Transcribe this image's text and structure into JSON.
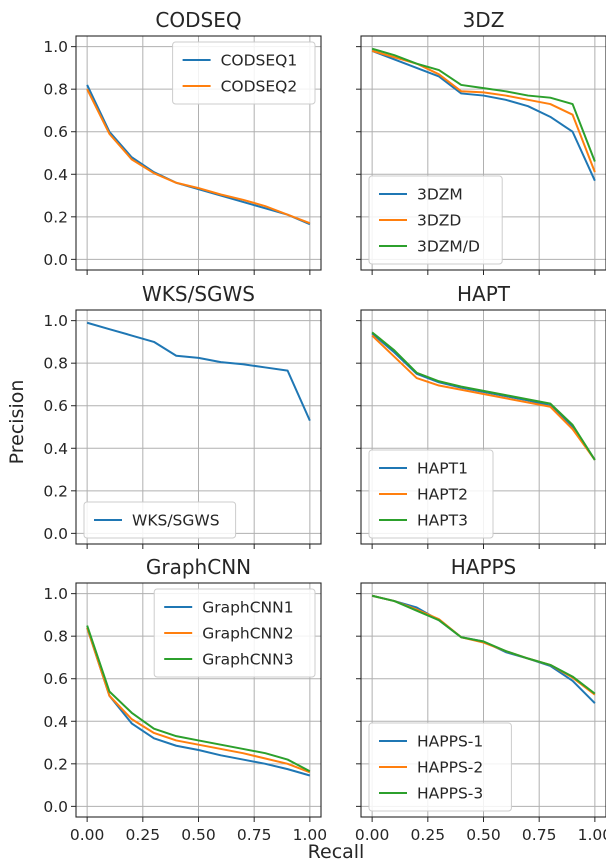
{
  "figure": {
    "xlabel": "Recall",
    "ylabel": "Precision"
  },
  "colors": {
    "blue": "#1f77b4",
    "orange": "#ff7f0e",
    "green": "#2ca02c",
    "grid": "#b0b0b0"
  },
  "chart_data": [
    {
      "type": "line",
      "title": "CODSEQ",
      "xlim": [
        0,
        1
      ],
      "ylim": [
        0,
        1
      ],
      "xticks": [
        "0.00",
        "0.25",
        "0.50",
        "0.75",
        "1.00"
      ],
      "yticks": [
        "0.0",
        "0.2",
        "0.4",
        "0.6",
        "0.8",
        "1.0"
      ],
      "grid": true,
      "legend": "top-right",
      "x": [
        0.0,
        0.1,
        0.2,
        0.3,
        0.4,
        0.5,
        0.6,
        0.7,
        0.8,
        0.9,
        1.0
      ],
      "series": [
        {
          "name": "CODSEQ1",
          "color": "blue",
          "values": [
            0.82,
            0.6,
            0.48,
            0.41,
            0.36,
            0.33,
            0.3,
            0.27,
            0.24,
            0.21,
            0.165
          ]
        },
        {
          "name": "CODSEQ2",
          "color": "orange",
          "values": [
            0.8,
            0.59,
            0.47,
            0.405,
            0.36,
            0.335,
            0.305,
            0.28,
            0.25,
            0.21,
            0.17
          ]
        }
      ]
    },
    {
      "type": "line",
      "title": "3DZ",
      "xlim": [
        0,
        1
      ],
      "ylim": [
        0,
        1
      ],
      "xticks": [
        "0.00",
        "0.25",
        "0.50",
        "0.75",
        "1.00"
      ],
      "yticks": [
        "0.0",
        "0.2",
        "0.4",
        "0.6",
        "0.8",
        "1.0"
      ],
      "grid": true,
      "legend": "bottom-left",
      "x": [
        0.0,
        0.1,
        0.2,
        0.3,
        0.4,
        0.5,
        0.6,
        0.7,
        0.8,
        0.9,
        1.0
      ],
      "series": [
        {
          "name": "3DZM",
          "color": "blue",
          "values": [
            0.98,
            0.94,
            0.9,
            0.86,
            0.78,
            0.77,
            0.75,
            0.72,
            0.67,
            0.6,
            0.37
          ]
        },
        {
          "name": "3DZD",
          "color": "orange",
          "values": [
            0.98,
            0.95,
            0.92,
            0.87,
            0.79,
            0.785,
            0.77,
            0.75,
            0.73,
            0.68,
            0.41
          ]
        },
        {
          "name": "3DZM/D",
          "color": "green",
          "values": [
            0.99,
            0.96,
            0.92,
            0.89,
            0.82,
            0.805,
            0.79,
            0.77,
            0.76,
            0.73,
            0.46
          ]
        }
      ]
    },
    {
      "type": "line",
      "title": "WKS/SGWS",
      "xlim": [
        0,
        1
      ],
      "ylim": [
        0,
        1
      ],
      "xticks": [
        "0.00",
        "0.25",
        "0.50",
        "0.75",
        "1.00"
      ],
      "yticks": [
        "0.0",
        "0.2",
        "0.4",
        "0.6",
        "0.8",
        "1.0"
      ],
      "grid": true,
      "legend": "bottom-left",
      "x": [
        0.0,
        0.1,
        0.2,
        0.3,
        0.4,
        0.5,
        0.6,
        0.7,
        0.8,
        0.9,
        1.0
      ],
      "series": [
        {
          "name": "WKS/SGWS",
          "color": "blue",
          "values": [
            0.99,
            0.96,
            0.93,
            0.9,
            0.835,
            0.825,
            0.805,
            0.795,
            0.78,
            0.765,
            0.53
          ]
        }
      ]
    },
    {
      "type": "line",
      "title": "HAPT",
      "xlim": [
        0,
        1
      ],
      "ylim": [
        0,
        1
      ],
      "xticks": [
        "0.00",
        "0.25",
        "0.50",
        "0.75",
        "1.00"
      ],
      "yticks": [
        "0.0",
        "0.2",
        "0.4",
        "0.6",
        "0.8",
        "1.0"
      ],
      "grid": true,
      "legend": "bottom-left",
      "x": [
        0.0,
        0.1,
        0.2,
        0.3,
        0.4,
        0.5,
        0.6,
        0.7,
        0.8,
        0.9,
        1.0
      ],
      "series": [
        {
          "name": "HAPT1",
          "color": "blue",
          "values": [
            0.94,
            0.85,
            0.75,
            0.71,
            0.685,
            0.665,
            0.645,
            0.625,
            0.6,
            0.5,
            0.345
          ]
        },
        {
          "name": "HAPT2",
          "color": "orange",
          "values": [
            0.93,
            0.83,
            0.73,
            0.695,
            0.675,
            0.655,
            0.635,
            0.615,
            0.595,
            0.49,
            0.345
          ]
        },
        {
          "name": "HAPT3",
          "color": "green",
          "values": [
            0.945,
            0.86,
            0.755,
            0.715,
            0.69,
            0.67,
            0.65,
            0.63,
            0.61,
            0.51,
            0.345
          ]
        }
      ]
    },
    {
      "type": "line",
      "title": "GraphCNN",
      "xlim": [
        0,
        1
      ],
      "ylim": [
        0,
        1
      ],
      "xticks": [
        "0.00",
        "0.25",
        "0.50",
        "0.75",
        "1.00"
      ],
      "yticks": [
        "0.0",
        "0.2",
        "0.4",
        "0.6",
        "0.8",
        "1.0"
      ],
      "grid": true,
      "legend": "top-right",
      "x": [
        0.0,
        0.1,
        0.2,
        0.3,
        0.4,
        0.5,
        0.6,
        0.7,
        0.8,
        0.9,
        1.0
      ],
      "series": [
        {
          "name": "GraphCNN1",
          "color": "blue",
          "values": [
            0.84,
            0.52,
            0.39,
            0.32,
            0.285,
            0.265,
            0.24,
            0.22,
            0.2,
            0.175,
            0.145
          ]
        },
        {
          "name": "GraphCNN2",
          "color": "orange",
          "values": [
            0.84,
            0.52,
            0.41,
            0.345,
            0.31,
            0.29,
            0.27,
            0.25,
            0.225,
            0.2,
            0.16
          ]
        },
        {
          "name": "GraphCNN3",
          "color": "green",
          "values": [
            0.85,
            0.54,
            0.44,
            0.365,
            0.33,
            0.31,
            0.29,
            0.27,
            0.25,
            0.22,
            0.165
          ]
        }
      ]
    },
    {
      "type": "line",
      "title": "HAPPS",
      "xlim": [
        0,
        1
      ],
      "ylim": [
        0,
        1
      ],
      "xticks": [
        "0.00",
        "0.25",
        "0.50",
        "0.75",
        "1.00"
      ],
      "yticks": [
        "0.0",
        "0.2",
        "0.4",
        "0.6",
        "0.8",
        "1.0"
      ],
      "grid": true,
      "legend": "bottom-left",
      "x": [
        0.0,
        0.1,
        0.2,
        0.3,
        0.4,
        0.5,
        0.6,
        0.7,
        0.8,
        0.9,
        1.0
      ],
      "series": [
        {
          "name": "HAPPS-1",
          "color": "blue",
          "values": [
            0.99,
            0.965,
            0.935,
            0.875,
            0.795,
            0.775,
            0.725,
            0.695,
            0.66,
            0.59,
            0.485
          ]
        },
        {
          "name": "HAPPS-2",
          "color": "orange",
          "values": [
            0.99,
            0.965,
            0.925,
            0.88,
            0.795,
            0.77,
            0.73,
            0.695,
            0.665,
            0.605,
            0.525
          ]
        },
        {
          "name": "HAPPS-3",
          "color": "green",
          "values": [
            0.99,
            0.965,
            0.92,
            0.875,
            0.795,
            0.775,
            0.73,
            0.695,
            0.665,
            0.61,
            0.53
          ]
        }
      ]
    }
  ]
}
